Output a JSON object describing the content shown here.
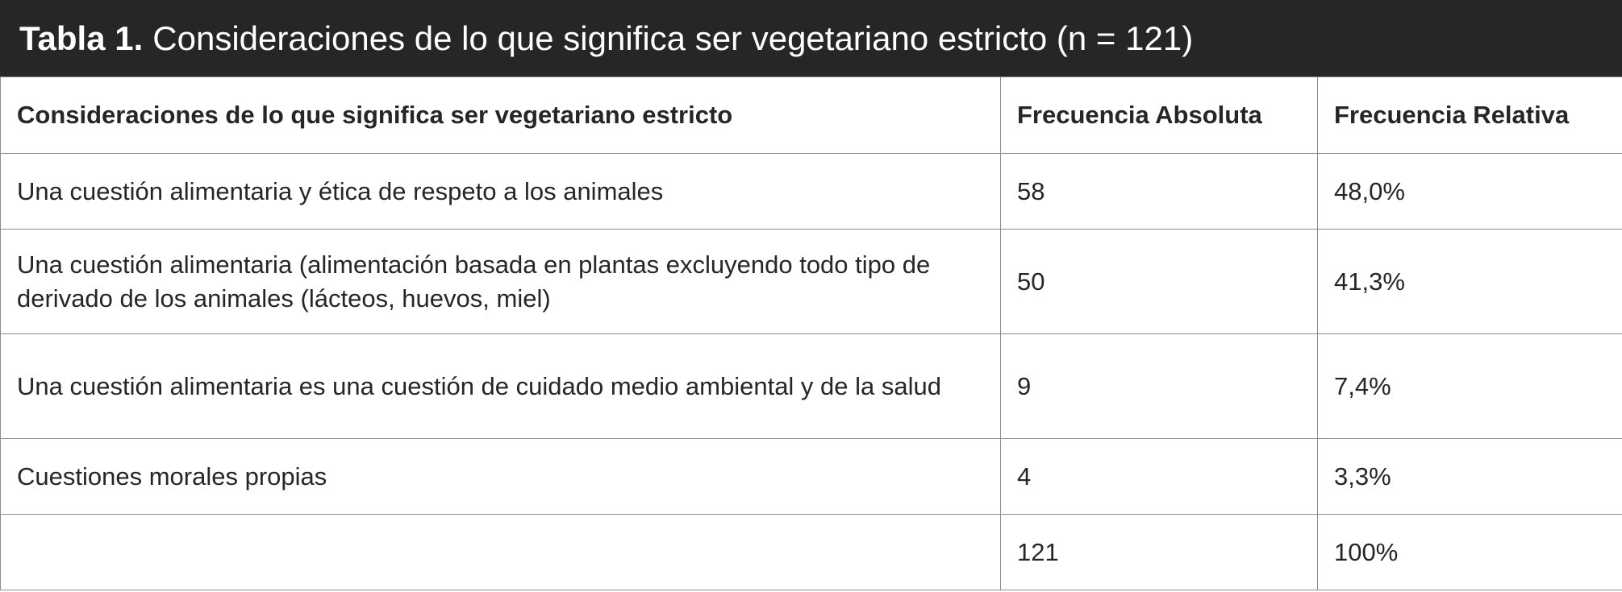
{
  "table": {
    "label": "Tabla 1.",
    "caption": "Consideraciones de lo que significa ser vegetariano estricto (n = 121)",
    "headers": [
      "Consideraciones de lo que significa ser vegetariano estricto",
      "Frecuencia Absoluta",
      "Frecuencia Relativa"
    ],
    "rows": [
      {
        "consideracion": "Una cuestión alimentaria y ética de respeto a los animales",
        "absoluta": "58",
        "relativa": "48,0%"
      },
      {
        "consideracion": "Una cuestión alimentaria (alimentación basada en plantas excluyendo todo tipo de derivado de los animales (lácteos, huevos, miel)",
        "absoluta": "50",
        "relativa": "41,3%"
      },
      {
        "consideracion": "Una cuestión alimentaria es una cuestión de cuidado medio ambiental y de la salud",
        "absoluta": "9",
        "relativa": "7,4%"
      },
      {
        "consideracion": "Cuestiones morales propias",
        "absoluta": "4",
        "relativa": "3,3%"
      }
    ],
    "total": {
      "consideracion": "",
      "absoluta": "121",
      "relativa": "100%"
    }
  }
}
